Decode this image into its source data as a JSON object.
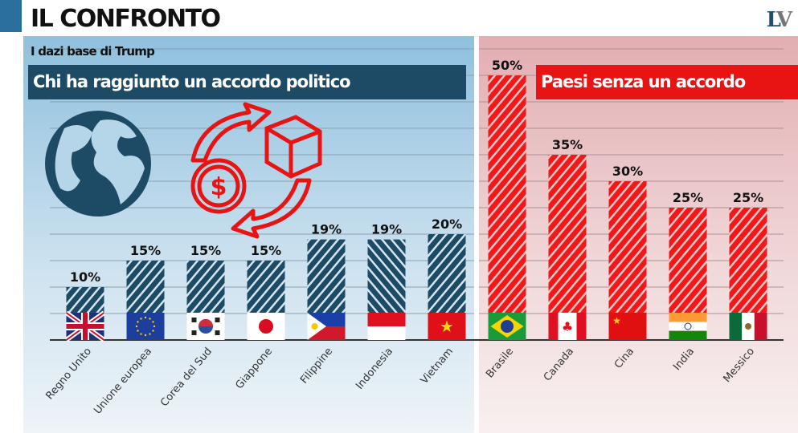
{
  "header": {
    "title": "IL CONFRONTO",
    "logo": "LV"
  },
  "chart_data": {
    "type": "bar",
    "title": "I dazi base di Trump",
    "groups": [
      {
        "label": "Chi ha raggiunto un accordo politico",
        "color": "#1d4b66"
      },
      {
        "label": "Paesi senza un accordo",
        "color": "#e81414"
      }
    ],
    "categories": [
      "Regno Unito",
      "Unione europea",
      "Corea del Sud",
      "Giappone",
      "Filippine",
      "Indonesia",
      "Vietnam",
      "Brasile",
      "Canada",
      "Cina",
      "India",
      "Messico"
    ],
    "values": [
      10,
      15,
      15,
      15,
      19,
      19,
      20,
      50,
      35,
      30,
      25,
      25
    ],
    "data_labels": [
      "10%",
      "15%",
      "15%",
      "15%",
      "19%",
      "19%",
      "20%",
      "50%",
      "35%",
      "30%",
      "25%",
      "25%"
    ],
    "group_index": [
      0,
      0,
      0,
      0,
      0,
      0,
      0,
      1,
      1,
      1,
      1,
      1
    ],
    "flags": [
      "uk",
      "eu",
      "kr",
      "jp",
      "ph",
      "id",
      "vn",
      "br",
      "ca",
      "cn",
      "in",
      "mx"
    ],
    "ylim": [
      0,
      55
    ],
    "grid": true
  }
}
